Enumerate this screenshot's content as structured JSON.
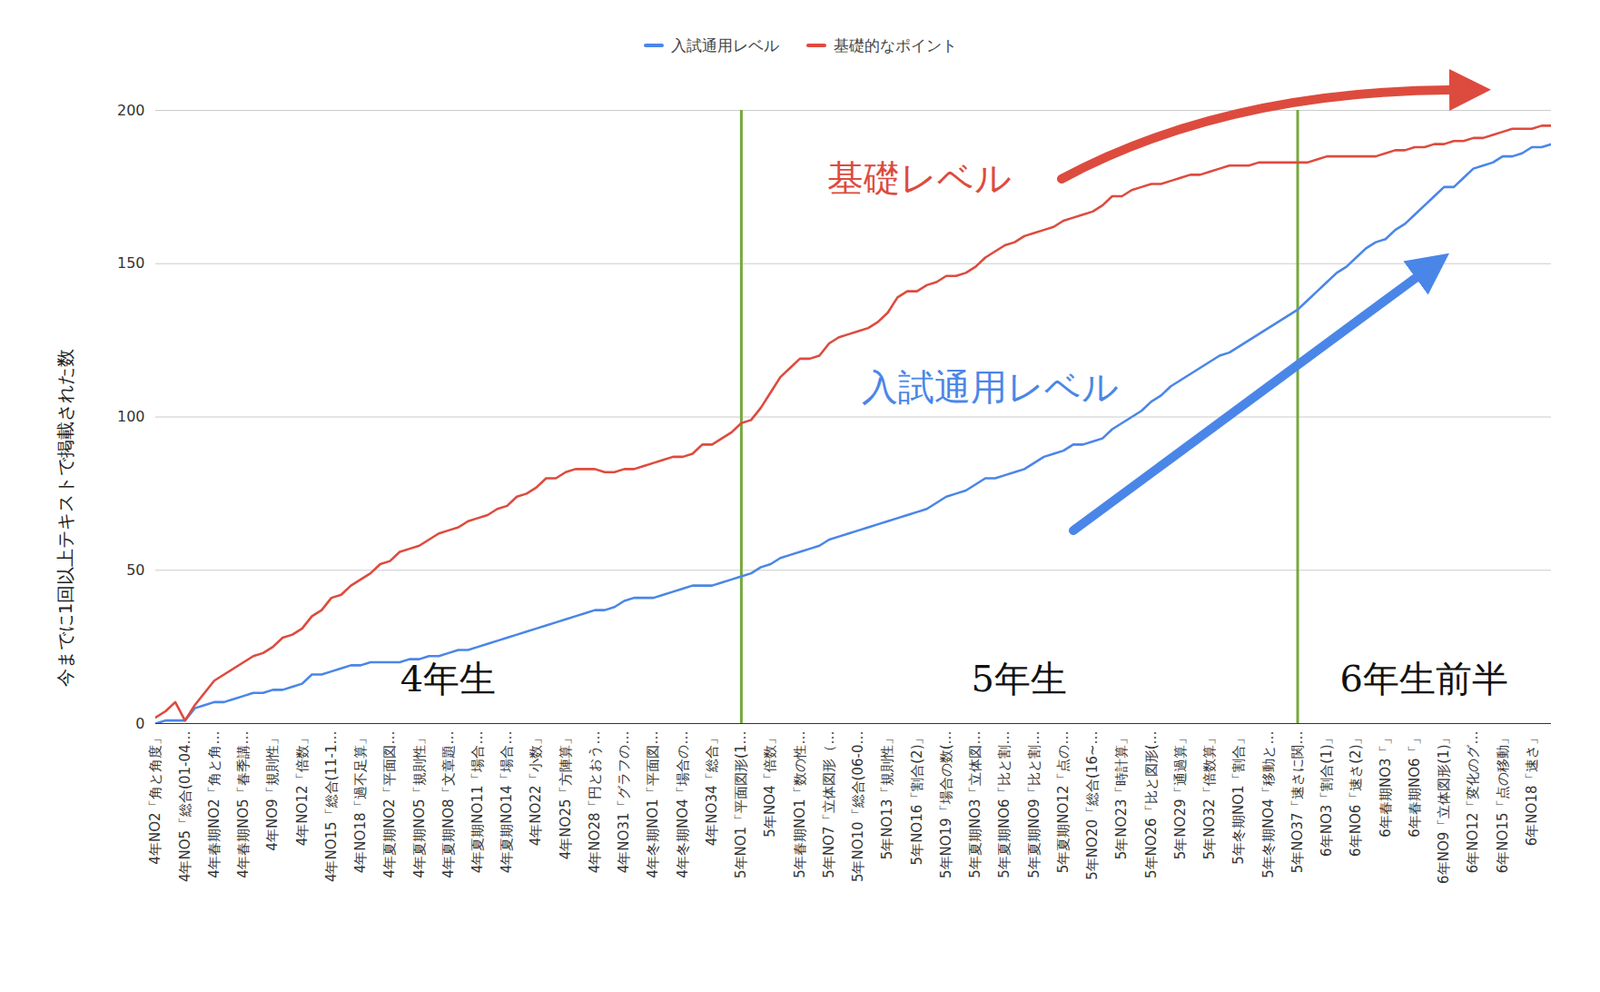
{
  "chart_data": {
    "type": "line",
    "y_label": "今までに1回以上テキストで掲載された数",
    "categories": [
      "4年NO2「角と角度」",
      null,
      null,
      "4年NO5「総合(01-04…",
      null,
      null,
      "4年春期NO2「角と角…",
      null,
      null,
      "4年春期NO5「春季講…",
      null,
      null,
      "4年NO9「規則性」",
      null,
      null,
      "4年NO12「倍数」",
      null,
      null,
      "4年NO15「総合(11-1…",
      null,
      null,
      "4年NO18「過不足算」",
      null,
      null,
      "4年夏期NO2「平面図…",
      null,
      null,
      "4年夏期NO5「規則性」",
      null,
      null,
      "4年夏期NO8「文章題…",
      null,
      null,
      "4年夏期NO11「場合…",
      null,
      null,
      "4年夏期NO14「場合…",
      null,
      null,
      "4年NO22「小数」",
      null,
      null,
      "4年NO25「方陣算」",
      null,
      null,
      "4年NO28「円とおう…",
      null,
      null,
      "4年NO31「グラフの…",
      null,
      null,
      "4年冬期NO1「平面図…",
      null,
      null,
      "4年冬期NO4「場合の…",
      null,
      null,
      "4年NO34「総合」",
      null,
      null,
      "5年NO1「平面図形(1…",
      null,
      null,
      "5年NO4「倍数」",
      null,
      null,
      "5年春期NO1「数の性…",
      null,
      null,
      "5年NO7「立体図形（…",
      null,
      null,
      "5年NO10「総合(06-0…",
      null,
      null,
      "5年NO13「規則性」",
      null,
      null,
      "5年NO16「割合(2)」",
      null,
      null,
      "5年NO19「場合の数(…",
      null,
      null,
      "5年夏期NO3「立体図…",
      null,
      null,
      "5年夏期NO6「比と割…",
      null,
      null,
      "5年夏期NO9「比と割…",
      null,
      null,
      "5年夏期NO12「点の…",
      null,
      null,
      "5年NO20「総合(16~…",
      null,
      null,
      "5年NO23「時計算」",
      null,
      null,
      "5年NO26「比と図形(…",
      null,
      null,
      "5年NO29「通過算」",
      null,
      null,
      "5年NO32「倍数算」",
      null,
      null,
      "5年冬期NO1「割合」",
      null,
      null,
      "5年冬期NO4「移動と…",
      null,
      null,
      "5年NO37「速さに関…",
      null,
      null,
      "6年NO3「割合(1)」",
      null,
      null,
      "6年NO6「速さ(2)」",
      null,
      null,
      "6年春期NO3「」",
      null,
      null,
      "6年春期NO6「」",
      null,
      null,
      "6年NO9「立体図形(1)」",
      null,
      null,
      "6年NO12「変化のグ…",
      null,
      null,
      "6年NO15「点の移動」",
      null,
      null,
      "6年NO18「速さ」",
      null,
      null
    ],
    "series": [
      {
        "name": "入試通用レベル",
        "color": "#4a86e8",
        "values": [
          0,
          1,
          1,
          1,
          5,
          6,
          7,
          7,
          8,
          9,
          10,
          10,
          11,
          11,
          12,
          13,
          16,
          16,
          17,
          18,
          19,
          19,
          20,
          20,
          20,
          20,
          21,
          21,
          22,
          22,
          23,
          24,
          24,
          25,
          26,
          27,
          28,
          29,
          30,
          31,
          32,
          33,
          34,
          35,
          36,
          37,
          37,
          38,
          40,
          41,
          41,
          41,
          42,
          43,
          44,
          45,
          45,
          45,
          46,
          47,
          48,
          49,
          51,
          52,
          54,
          55,
          56,
          57,
          58,
          60,
          61,
          62,
          63,
          64,
          65,
          66,
          67,
          68,
          69,
          70,
          72,
          74,
          75,
          76,
          78,
          80,
          80,
          81,
          82,
          83,
          85,
          87,
          88,
          89,
          91,
          91,
          92,
          93,
          96,
          98,
          100,
          102,
          105,
          107,
          110,
          112,
          114,
          116,
          118,
          120,
          121,
          123,
          125,
          127,
          129,
          131,
          133,
          135,
          138,
          141,
          144,
          147,
          149,
          152,
          155,
          157,
          158,
          161,
          163,
          166,
          169,
          172,
          175,
          175,
          178,
          181,
          182,
          183,
          185,
          185,
          186,
          188,
          188,
          189
        ]
      },
      {
        "name": "基礎的なポイント",
        "color": "#dd4b3e",
        "values": [
          2,
          4,
          7,
          1,
          6,
          10,
          14,
          16,
          18,
          20,
          22,
          23,
          25,
          28,
          29,
          31,
          35,
          37,
          41,
          42,
          45,
          47,
          49,
          52,
          53,
          56,
          57,
          58,
          60,
          62,
          63,
          64,
          66,
          67,
          68,
          70,
          71,
          74,
          75,
          77,
          80,
          80,
          82,
          83,
          83,
          83,
          82,
          82,
          83,
          83,
          84,
          85,
          86,
          87,
          87,
          88,
          91,
          91,
          93,
          95,
          98,
          99,
          103,
          108,
          113,
          116,
          119,
          119,
          120,
          124,
          126,
          127,
          128,
          129,
          131,
          134,
          139,
          141,
          141,
          143,
          144,
          146,
          146,
          147,
          149,
          152,
          154,
          156,
          157,
          159,
          160,
          161,
          162,
          164,
          165,
          166,
          167,
          169,
          172,
          172,
          174,
          175,
          176,
          176,
          177,
          178,
          179,
          179,
          180,
          181,
          182,
          182,
          182,
          183,
          183,
          183,
          183,
          183,
          183,
          184,
          185,
          185,
          185,
          185,
          185,
          185,
          186,
          187,
          187,
          188,
          188,
          189,
          189,
          190,
          190,
          191,
          191,
          192,
          193,
          194,
          194,
          194,
          195,
          195
        ]
      }
    ],
    "ylim": [
      0,
      200
    ],
    "yticks": [
      0,
      50,
      100,
      150,
      200
    ],
    "grid": true,
    "legend": "top",
    "vlines": [
      "5年NO1「平面図形(1…",
      "5年NO37「速さに関…"
    ],
    "annotations": {
      "regions": [
        "4年生",
        "5年生",
        "6年生前半"
      ],
      "series_labels": [
        {
          "text": "基礎レベル",
          "series": "基礎的なポイント"
        },
        {
          "text": "入試通用レベル",
          "series": "入試通用レベル"
        }
      ]
    }
  }
}
